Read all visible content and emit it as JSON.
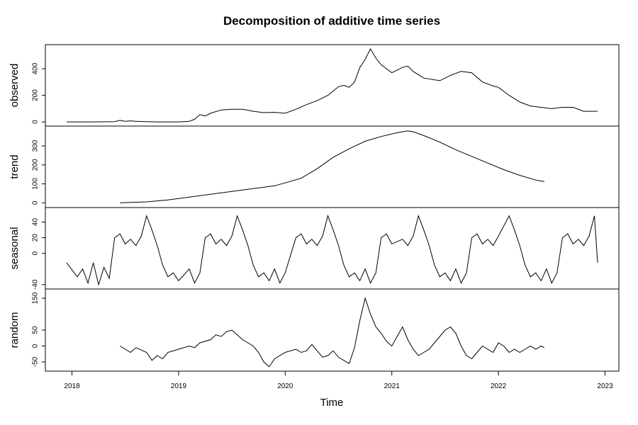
{
  "chart_data": {
    "type": "line",
    "title": "Decomposition of additive time series",
    "xlabel": "Time",
    "x_range": [
      2017.95,
      2022.93
    ],
    "x_ticks": [
      "2018",
      "2019",
      "2020",
      "2021",
      "2022",
      "2023"
    ],
    "panels": [
      {
        "name": "observed",
        "ylabel": "observed",
        "y_ticks": [
          0,
          200,
          400
        ],
        "ylim": [
          -10,
          560
        ],
        "series": {
          "x": [
            2017.95,
            2018.2,
            2018.4,
            2018.45,
            2018.5,
            2018.55,
            2018.6,
            2018.7,
            2018.8,
            2019.0,
            2019.1,
            2019.15,
            2019.2,
            2019.25,
            2019.3,
            2019.4,
            2019.5,
            2019.6,
            2019.7,
            2019.8,
            2019.9,
            2020.0,
            2020.1,
            2020.2,
            2020.3,
            2020.4,
            2020.5,
            2020.55,
            2020.6,
            2020.65,
            2020.7,
            2020.75,
            2020.8,
            2020.85,
            2020.9,
            2021.0,
            2021.1,
            2021.15,
            2021.2,
            2021.3,
            2021.45,
            2021.55,
            2021.65,
            2021.75,
            2021.85,
            2021.95,
            2022.0,
            2022.1,
            2022.2,
            2022.3,
            2022.4,
            2022.5,
            2022.6,
            2022.7,
            2022.8,
            2022.93
          ],
          "values": [
            0,
            0,
            2,
            12,
            5,
            8,
            5,
            2,
            0,
            0,
            5,
            20,
            55,
            45,
            65,
            90,
            95,
            95,
            80,
            70,
            72,
            65,
            95,
            130,
            160,
            200,
            265,
            275,
            260,
            300,
            410,
            470,
            550,
            480,
            430,
            370,
            410,
            420,
            380,
            330,
            310,
            350,
            380,
            370,
            300,
            270,
            260,
            200,
            150,
            120,
            110,
            100,
            110,
            110,
            80,
            80
          ]
        }
      },
      {
        "name": "trend",
        "ylabel": "trend",
        "y_ticks": [
          0,
          100,
          200,
          300
        ],
        "ylim": [
          -10,
          390
        ],
        "series": {
          "x": [
            2018.45,
            2018.7,
            2018.9,
            2019.1,
            2019.3,
            2019.5,
            2019.7,
            2019.9,
            2020.0,
            2020.15,
            2020.3,
            2020.45,
            2020.6,
            2020.75,
            2020.9,
            2021.05,
            2021.15,
            2021.2,
            2021.3,
            2021.45,
            2021.6,
            2021.75,
            2021.9,
            2022.05,
            2022.2,
            2022.35,
            2022.43
          ],
          "values": [
            0,
            5,
            15,
            30,
            45,
            60,
            75,
            90,
            105,
            130,
            180,
            240,
            285,
            325,
            350,
            370,
            380,
            375,
            355,
            320,
            280,
            245,
            210,
            175,
            145,
            120,
            112
          ]
        }
      },
      {
        "name": "seasonal",
        "ylabel": "seasonal",
        "y_ticks": [
          -40,
          0,
          20,
          40
        ],
        "ylim": [
          -42,
          55
        ],
        "series": {
          "x": [
            2017.95,
            2018.05,
            2018.1,
            2018.15,
            2018.2,
            2018.25,
            2018.3,
            2018.35,
            2018.4,
            2018.45,
            2018.5,
            2018.55,
            2018.6,
            2018.65,
            2018.7,
            2018.75,
            2018.8,
            2018.85,
            2018.9,
            2018.95,
            2019.0,
            2019.1,
            2019.15,
            2019.2,
            2019.25,
            2019.3,
            2019.35,
            2019.4,
            2019.45,
            2019.5,
            2019.55,
            2019.6,
            2019.65,
            2019.7,
            2019.75,
            2019.8,
            2019.85,
            2019.9,
            2019.95,
            2020.0,
            2020.1,
            2020.15,
            2020.2,
            2020.25,
            2020.3,
            2020.35,
            2020.4,
            2020.45,
            2020.5,
            2020.55,
            2020.6,
            2020.65,
            2020.7,
            2020.75,
            2020.8,
            2020.85,
            2020.9,
            2020.95,
            2021.0,
            2021.1,
            2021.15,
            2021.2,
            2021.25,
            2021.3,
            2021.35,
            2021.4,
            2021.45,
            2021.5,
            2021.55,
            2021.6,
            2021.65,
            2021.7,
            2021.75,
            2021.8,
            2021.85,
            2021.9,
            2021.95,
            2022.0,
            2022.1,
            2022.15,
            2022.2,
            2022.25,
            2022.3,
            2022.35,
            2022.4,
            2022.45,
            2022.5,
            2022.55,
            2022.6,
            2022.65,
            2022.7,
            2022.75,
            2022.8,
            2022.85,
            2022.9,
            2022.93
          ],
          "values": [
            -12,
            -30,
            -20,
            -38,
            -12,
            -40,
            -18,
            -32,
            20,
            25,
            12,
            18,
            10,
            22,
            48,
            30,
            10,
            -15,
            -30,
            -25,
            -35,
            -20,
            -38,
            -25,
            20,
            25,
            12,
            18,
            10,
            22,
            48,
            30,
            10,
            -15,
            -30,
            -25,
            -35,
            -20,
            -38,
            -25,
            20,
            25,
            12,
            18,
            10,
            22,
            48,
            30,
            10,
            -15,
            -30,
            -25,
            -35,
            -20,
            -38,
            -25,
            20,
            25,
            12,
            18,
            10,
            22,
            48,
            30,
            10,
            -15,
            -30,
            -25,
            -35,
            -20,
            -38,
            -25,
            20,
            25,
            12,
            18,
            10,
            22,
            48,
            30,
            10,
            -15,
            -30,
            -25,
            -35,
            -20,
            -38,
            -25,
            20,
            25,
            12,
            18,
            10,
            22,
            48,
            -12
          ]
        }
      },
      {
        "name": "random",
        "ylabel": "random",
        "y_ticks": [
          -50,
          0,
          50,
          150
        ],
        "ylim": [
          -70,
          170
        ],
        "series": {
          "x": [
            2018.45,
            2018.55,
            2018.6,
            2018.7,
            2018.75,
            2018.8,
            2018.85,
            2018.9,
            2019.0,
            2019.1,
            2019.15,
            2019.2,
            2019.3,
            2019.35,
            2019.4,
            2019.45,
            2019.5,
            2019.55,
            2019.6,
            2019.65,
            2019.7,
            2019.75,
            2019.8,
            2019.85,
            2019.9,
            2020.0,
            2020.1,
            2020.15,
            2020.2,
            2020.25,
            2020.3,
            2020.35,
            2020.4,
            2020.45,
            2020.5,
            2020.55,
            2020.6,
            2020.65,
            2020.7,
            2020.75,
            2020.8,
            2020.85,
            2020.9,
            2020.95,
            2021.0,
            2021.05,
            2021.1,
            2021.15,
            2021.2,
            2021.25,
            2021.3,
            2021.35,
            2021.4,
            2021.45,
            2021.5,
            2021.55,
            2021.6,
            2021.65,
            2021.7,
            2021.75,
            2021.8,
            2021.85,
            2021.9,
            2021.95,
            2022.0,
            2022.05,
            2022.1,
            2022.15,
            2022.2,
            2022.25,
            2022.3,
            2022.35,
            2022.4,
            2022.43
          ],
          "values": [
            0,
            -20,
            -5,
            -20,
            -45,
            -30,
            -40,
            -20,
            -10,
            0,
            -5,
            10,
            20,
            35,
            30,
            45,
            50,
            35,
            20,
            10,
            0,
            -20,
            -50,
            -65,
            -40,
            -20,
            -10,
            -20,
            -15,
            5,
            -15,
            -35,
            -30,
            -15,
            -35,
            -45,
            -55,
            -5,
            80,
            150,
            100,
            60,
            40,
            15,
            0,
            30,
            60,
            20,
            -10,
            -30,
            -20,
            -10,
            10,
            30,
            50,
            60,
            40,
            0,
            -30,
            -40,
            -20,
            0,
            -10,
            -20,
            10,
            0,
            -20,
            -10,
            -20,
            -10,
            0,
            -10,
            0,
            -5
          ]
        }
      }
    ]
  }
}
